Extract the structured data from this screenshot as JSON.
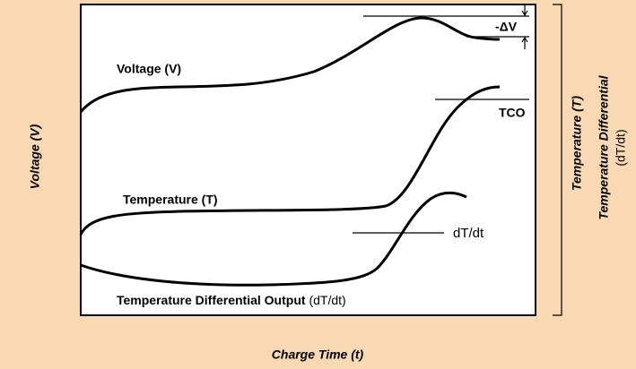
{
  "diagram": {
    "axes": {
      "left": "Voltage (V)",
      "right": "Temperature (T)",
      "right2": {
        "main": "Temperature Differential",
        "unit": "(dT/dt)"
      },
      "bottom": "Charge Time (t)"
    },
    "curves": {
      "voltage": "Voltage (V)",
      "temperature": "Temperature (T)",
      "differential": {
        "main": "Temperature Differential Output ",
        "unit": "(dT/dt)"
      }
    },
    "markers": {
      "delta_v": "-ΔV",
      "tco": "TCO",
      "dtdt": "dT/dt"
    }
  }
}
